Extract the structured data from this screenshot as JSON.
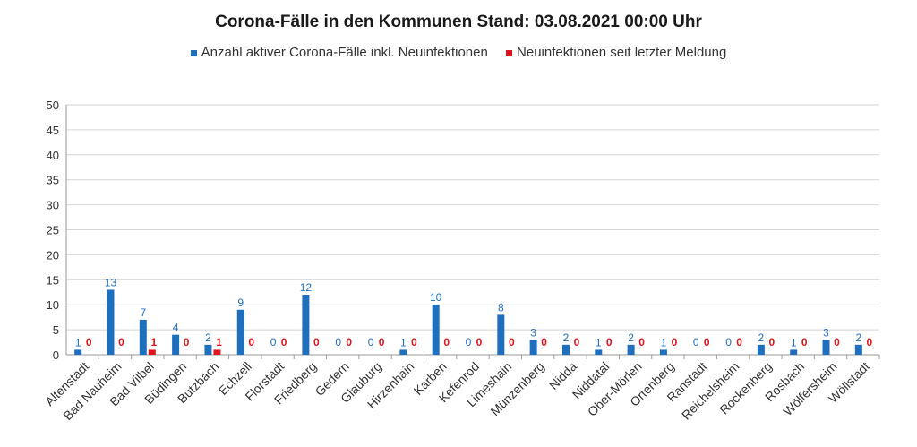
{
  "chart_data": {
    "type": "bar",
    "title": "Corona-Fälle in den Kommunen Stand: 03.08.2021 00:00 Uhr",
    "xlabel": "",
    "ylabel": "",
    "ylim": [
      0,
      50
    ],
    "yticks": [
      0,
      5,
      10,
      15,
      20,
      25,
      30,
      35,
      40,
      45,
      50
    ],
    "grid": true,
    "legend_position": "top-center",
    "categories": [
      "Altenstadt",
      "Bad Nauheim",
      "Bad Vilbel",
      "Büdingen",
      "Butzbach",
      "Echzell",
      "Florstadt",
      "Friedberg",
      "Gedern",
      "Glauburg",
      "Hirzenhain",
      "Karben",
      "Kefenrod",
      "Limeshain",
      "Münzenberg",
      "Nidda",
      "Niddatal",
      "Ober-Mörlen",
      "Ortenberg",
      "Ranstadt",
      "Reichelsheim",
      "Rockenberg",
      "Rosbach",
      "Wölfersheim",
      "Wöllstadt"
    ],
    "series": [
      {
        "name": "Anzahl aktiver Corona-Fälle inkl. Neuinfektionen",
        "color": "#1f6fbf",
        "values": [
          1,
          13,
          7,
          4,
          2,
          9,
          0,
          12,
          0,
          0,
          1,
          10,
          0,
          8,
          3,
          2,
          1,
          2,
          1,
          0,
          0,
          2,
          1,
          3,
          2
        ]
      },
      {
        "name": "Neuinfektionen seit letzter Meldung",
        "color": "#e0141c",
        "values": [
          0,
          0,
          1,
          0,
          1,
          0,
          0,
          0,
          0,
          0,
          0,
          0,
          0,
          0,
          0,
          0,
          0,
          0,
          0,
          0,
          0,
          0,
          0,
          0,
          0
        ]
      }
    ]
  }
}
